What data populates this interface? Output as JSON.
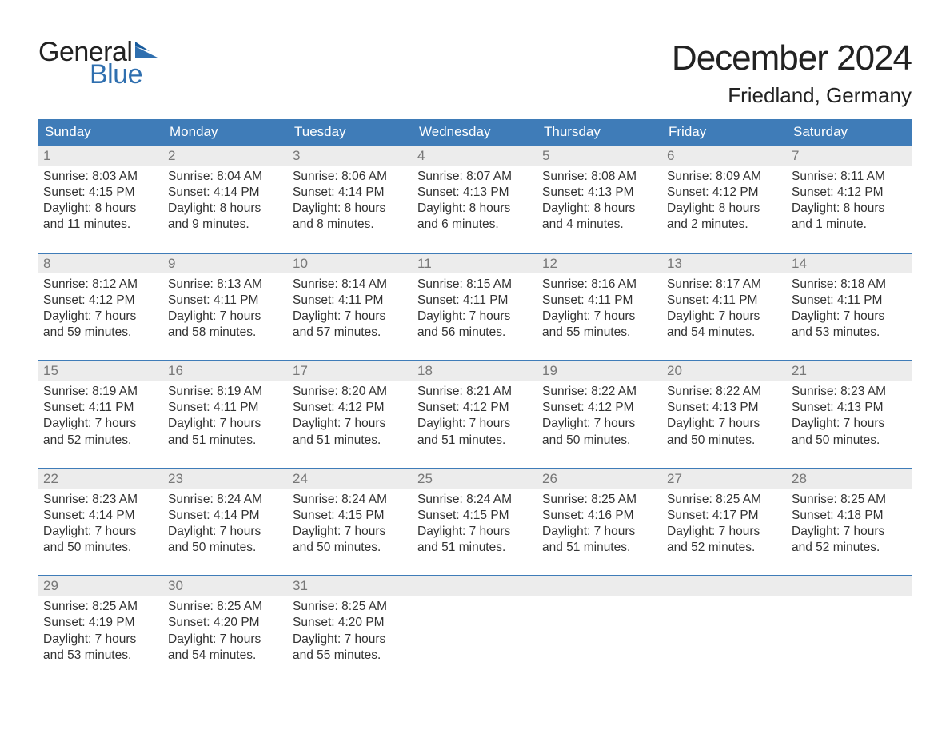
{
  "colors": {
    "header_bg": "#3f7cb8",
    "header_text": "#ffffff",
    "week_border": "#3f7cb8",
    "daynum_bg": "#ececec",
    "daynum_text": "#777777",
    "body_text": "#333333",
    "background": "#ffffff",
    "logo_blue": "#2f6faf",
    "logo_dark": "#222222"
  },
  "typography": {
    "title_fontsize": 44,
    "subtitle_fontsize": 26,
    "logo_fontsize": 34,
    "dayheader_fontsize": 17,
    "daynum_fontsize": 17,
    "content_fontsize": 15.5,
    "font_family": "Arial"
  },
  "logo": {
    "top": "General",
    "bottom": "Blue"
  },
  "title": "December 2024",
  "subtitle": "Friedland, Germany",
  "day_headers": [
    "Sunday",
    "Monday",
    "Tuesday",
    "Wednesday",
    "Thursday",
    "Friday",
    "Saturday"
  ],
  "weeks": [
    [
      {
        "num": "1",
        "sunrise": "Sunrise: 8:03 AM",
        "sunset": "Sunset: 4:15 PM",
        "daylight1": "Daylight: 8 hours",
        "daylight2": "and 11 minutes."
      },
      {
        "num": "2",
        "sunrise": "Sunrise: 8:04 AM",
        "sunset": "Sunset: 4:14 PM",
        "daylight1": "Daylight: 8 hours",
        "daylight2": "and 9 minutes."
      },
      {
        "num": "3",
        "sunrise": "Sunrise: 8:06 AM",
        "sunset": "Sunset: 4:14 PM",
        "daylight1": "Daylight: 8 hours",
        "daylight2": "and 8 minutes."
      },
      {
        "num": "4",
        "sunrise": "Sunrise: 8:07 AM",
        "sunset": "Sunset: 4:13 PM",
        "daylight1": "Daylight: 8 hours",
        "daylight2": "and 6 minutes."
      },
      {
        "num": "5",
        "sunrise": "Sunrise: 8:08 AM",
        "sunset": "Sunset: 4:13 PM",
        "daylight1": "Daylight: 8 hours",
        "daylight2": "and 4 minutes."
      },
      {
        "num": "6",
        "sunrise": "Sunrise: 8:09 AM",
        "sunset": "Sunset: 4:12 PM",
        "daylight1": "Daylight: 8 hours",
        "daylight2": "and 2 minutes."
      },
      {
        "num": "7",
        "sunrise": "Sunrise: 8:11 AM",
        "sunset": "Sunset: 4:12 PM",
        "daylight1": "Daylight: 8 hours",
        "daylight2": "and 1 minute."
      }
    ],
    [
      {
        "num": "8",
        "sunrise": "Sunrise: 8:12 AM",
        "sunset": "Sunset: 4:12 PM",
        "daylight1": "Daylight: 7 hours",
        "daylight2": "and 59 minutes."
      },
      {
        "num": "9",
        "sunrise": "Sunrise: 8:13 AM",
        "sunset": "Sunset: 4:11 PM",
        "daylight1": "Daylight: 7 hours",
        "daylight2": "and 58 minutes."
      },
      {
        "num": "10",
        "sunrise": "Sunrise: 8:14 AM",
        "sunset": "Sunset: 4:11 PM",
        "daylight1": "Daylight: 7 hours",
        "daylight2": "and 57 minutes."
      },
      {
        "num": "11",
        "sunrise": "Sunrise: 8:15 AM",
        "sunset": "Sunset: 4:11 PM",
        "daylight1": "Daylight: 7 hours",
        "daylight2": "and 56 minutes."
      },
      {
        "num": "12",
        "sunrise": "Sunrise: 8:16 AM",
        "sunset": "Sunset: 4:11 PM",
        "daylight1": "Daylight: 7 hours",
        "daylight2": "and 55 minutes."
      },
      {
        "num": "13",
        "sunrise": "Sunrise: 8:17 AM",
        "sunset": "Sunset: 4:11 PM",
        "daylight1": "Daylight: 7 hours",
        "daylight2": "and 54 minutes."
      },
      {
        "num": "14",
        "sunrise": "Sunrise: 8:18 AM",
        "sunset": "Sunset: 4:11 PM",
        "daylight1": "Daylight: 7 hours",
        "daylight2": "and 53 minutes."
      }
    ],
    [
      {
        "num": "15",
        "sunrise": "Sunrise: 8:19 AM",
        "sunset": "Sunset: 4:11 PM",
        "daylight1": "Daylight: 7 hours",
        "daylight2": "and 52 minutes."
      },
      {
        "num": "16",
        "sunrise": "Sunrise: 8:19 AM",
        "sunset": "Sunset: 4:11 PM",
        "daylight1": "Daylight: 7 hours",
        "daylight2": "and 51 minutes."
      },
      {
        "num": "17",
        "sunrise": "Sunrise: 8:20 AM",
        "sunset": "Sunset: 4:12 PM",
        "daylight1": "Daylight: 7 hours",
        "daylight2": "and 51 minutes."
      },
      {
        "num": "18",
        "sunrise": "Sunrise: 8:21 AM",
        "sunset": "Sunset: 4:12 PM",
        "daylight1": "Daylight: 7 hours",
        "daylight2": "and 51 minutes."
      },
      {
        "num": "19",
        "sunrise": "Sunrise: 8:22 AM",
        "sunset": "Sunset: 4:12 PM",
        "daylight1": "Daylight: 7 hours",
        "daylight2": "and 50 minutes."
      },
      {
        "num": "20",
        "sunrise": "Sunrise: 8:22 AM",
        "sunset": "Sunset: 4:13 PM",
        "daylight1": "Daylight: 7 hours",
        "daylight2": "and 50 minutes."
      },
      {
        "num": "21",
        "sunrise": "Sunrise: 8:23 AM",
        "sunset": "Sunset: 4:13 PM",
        "daylight1": "Daylight: 7 hours",
        "daylight2": "and 50 minutes."
      }
    ],
    [
      {
        "num": "22",
        "sunrise": "Sunrise: 8:23 AM",
        "sunset": "Sunset: 4:14 PM",
        "daylight1": "Daylight: 7 hours",
        "daylight2": "and 50 minutes."
      },
      {
        "num": "23",
        "sunrise": "Sunrise: 8:24 AM",
        "sunset": "Sunset: 4:14 PM",
        "daylight1": "Daylight: 7 hours",
        "daylight2": "and 50 minutes."
      },
      {
        "num": "24",
        "sunrise": "Sunrise: 8:24 AM",
        "sunset": "Sunset: 4:15 PM",
        "daylight1": "Daylight: 7 hours",
        "daylight2": "and 50 minutes."
      },
      {
        "num": "25",
        "sunrise": "Sunrise: 8:24 AM",
        "sunset": "Sunset: 4:15 PM",
        "daylight1": "Daylight: 7 hours",
        "daylight2": "and 51 minutes."
      },
      {
        "num": "26",
        "sunrise": "Sunrise: 8:25 AM",
        "sunset": "Sunset: 4:16 PM",
        "daylight1": "Daylight: 7 hours",
        "daylight2": "and 51 minutes."
      },
      {
        "num": "27",
        "sunrise": "Sunrise: 8:25 AM",
        "sunset": "Sunset: 4:17 PM",
        "daylight1": "Daylight: 7 hours",
        "daylight2": "and 52 minutes."
      },
      {
        "num": "28",
        "sunrise": "Sunrise: 8:25 AM",
        "sunset": "Sunset: 4:18 PM",
        "daylight1": "Daylight: 7 hours",
        "daylight2": "and 52 minutes."
      }
    ],
    [
      {
        "num": "29",
        "sunrise": "Sunrise: 8:25 AM",
        "sunset": "Sunset: 4:19 PM",
        "daylight1": "Daylight: 7 hours",
        "daylight2": "and 53 minutes."
      },
      {
        "num": "30",
        "sunrise": "Sunrise: 8:25 AM",
        "sunset": "Sunset: 4:20 PM",
        "daylight1": "Daylight: 7 hours",
        "daylight2": "and 54 minutes."
      },
      {
        "num": "31",
        "sunrise": "Sunrise: 8:25 AM",
        "sunset": "Sunset: 4:20 PM",
        "daylight1": "Daylight: 7 hours",
        "daylight2": "and 55 minutes."
      },
      {
        "empty": true
      },
      {
        "empty": true
      },
      {
        "empty": true
      },
      {
        "empty": true
      }
    ]
  ]
}
